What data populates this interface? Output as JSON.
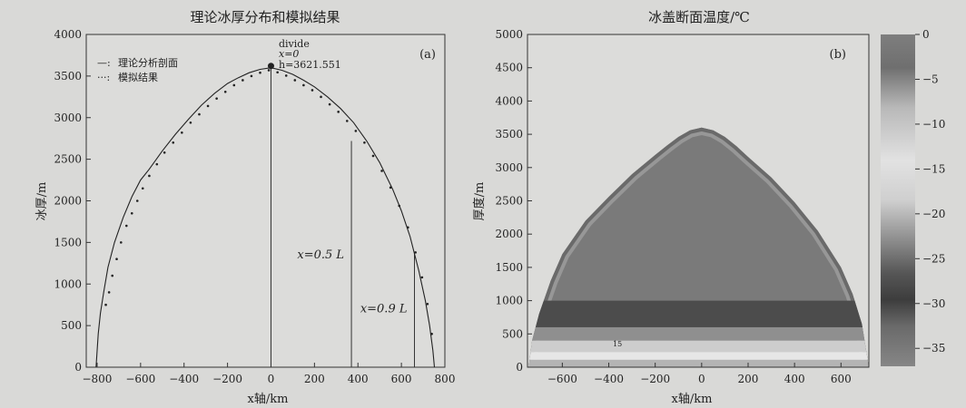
{
  "chart_data": [
    {
      "panel": "a",
      "type": "line",
      "title": "理论冰厚分布和模拟结果",
      "panel_label": "(a)",
      "xlabel": "x轴/km",
      "ylabel": "冰厚/m",
      "xlim": [
        -850,
        800
      ],
      "ylim": [
        0,
        4000
      ],
      "xticks": [
        -800,
        -600,
        -400,
        -200,
        0,
        200,
        400,
        600,
        800
      ],
      "xtick_labels": [
        "−800",
        "−600",
        "−400",
        "−200",
        "0",
        "200",
        "400",
        "600",
        "800"
      ],
      "yticks": [
        0,
        500,
        1000,
        1500,
        2000,
        2500,
        3000,
        3500,
        4000
      ],
      "ytick_labels": [
        "0",
        "500",
        "1000",
        "1500",
        "2000",
        "2500",
        "3000",
        "3500",
        "4000"
      ],
      "legend": {
        "placement": "top-left",
        "entries": [
          {
            "marker": "—:",
            "label": "理论分析剖面"
          },
          {
            "marker": "···:",
            "label": "模拟结果"
          }
        ]
      },
      "series": [
        {
          "style": "solid",
          "x": [
            -805,
            -800,
            -795,
            -785,
            -770,
            -750,
            -720,
            -680,
            -640,
            -600,
            -560,
            -500,
            -440,
            -380,
            -320,
            -260,
            -200,
            -150,
            -100,
            -50,
            0,
            50,
            100,
            150,
            200,
            260,
            320,
            380,
            440,
            500,
            560,
            600,
            640,
            680,
            710,
            730,
            745,
            752
          ],
          "y": [
            0,
            200,
            400,
            650,
            900,
            1200,
            1500,
            1800,
            2050,
            2250,
            2380,
            2600,
            2800,
            2980,
            3150,
            3290,
            3410,
            3480,
            3540,
            3580,
            3600,
            3570,
            3520,
            3450,
            3370,
            3250,
            3110,
            2940,
            2720,
            2460,
            2140,
            1880,
            1570,
            1160,
            800,
            500,
            200,
            0
          ]
        },
        {
          "style": "dotted",
          "x": [
            -760,
            -745,
            -730,
            -710,
            -690,
            -665,
            -640,
            -615,
            -590,
            -560,
            -525,
            -490,
            -450,
            -410,
            -370,
            -330,
            -290,
            -250,
            -210,
            -170,
            -130,
            -90,
            -50,
            -10,
            30,
            70,
            110,
            150,
            190,
            230,
            270,
            310,
            350,
            390,
            430,
            470,
            510,
            550,
            590,
            630,
            665,
            695,
            720,
            740
          ],
          "y": [
            750,
            900,
            1100,
            1300,
            1500,
            1700,
            1850,
            2000,
            2150,
            2300,
            2440,
            2580,
            2700,
            2820,
            2940,
            3040,
            3140,
            3230,
            3310,
            3390,
            3450,
            3500,
            3540,
            3570,
            3545,
            3505,
            3450,
            3390,
            3330,
            3250,
            3160,
            3070,
            2960,
            2840,
            2700,
            2540,
            2360,
            2160,
            1940,
            1680,
            1380,
            1080,
            760,
            400
          ]
        }
      ],
      "vlines": [
        {
          "x": 0,
          "y_top": 3600
        },
        {
          "x": 370,
          "y_top": 2720,
          "label": "x=0.5 L"
        },
        {
          "x": 660,
          "y_top": 1370,
          "label": "x=0.9 L"
        }
      ],
      "annotations": [
        {
          "text": "divide",
          "x": 0,
          "y": 3621.551
        },
        {
          "text": "x=0"
        },
        {
          "text": "h=3621.551"
        }
      ]
    },
    {
      "panel": "b",
      "type": "heatmap",
      "title": "冰盖断面温度/℃",
      "panel_label": "(b)",
      "xlabel": "x轴/km",
      "ylabel": "厚度/m",
      "xlim": [
        -750,
        720
      ],
      "ylim": [
        0,
        5000
      ],
      "xticks": [
        -600,
        -400,
        -200,
        0,
        200,
        400,
        600
      ],
      "xtick_labels": [
        "−600",
        "−400",
        "−200",
        "0",
        "200",
        "400",
        "600"
      ],
      "yticks": [
        0,
        500,
        1000,
        1500,
        2000,
        2500,
        3000,
        3500,
        4000,
        4500,
        5000
      ],
      "ytick_labels": [
        "0",
        "500",
        "1000",
        "1500",
        "2000",
        "2500",
        "3000",
        "3500",
        "4000",
        "4500",
        "5000"
      ],
      "surface": {
        "x": [
          -745,
          -730,
          -700,
          -650,
          -600,
          -500,
          -400,
          -300,
          -200,
          -150,
          -100,
          -50,
          0,
          50,
          100,
          150,
          200,
          300,
          400,
          500,
          600,
          650,
          690,
          720
        ],
        "y": [
          0,
          400,
          800,
          1300,
          1700,
          2200,
          2560,
          2900,
          3190,
          3330,
          3460,
          3560,
          3600,
          3560,
          3460,
          3320,
          3160,
          2850,
          2480,
          2050,
          1500,
          1100,
          650,
          0
        ]
      },
      "colorbar": {
        "ticks": [
          0,
          -5,
          -10,
          -15,
          -20,
          -25,
          -30,
          -35
        ],
        "tick_labels": [
          "0",
          "−5",
          "−10",
          "−15",
          "−20",
          "−25",
          "−30",
          "−35"
        ],
        "range": [
          -37,
          0
        ]
      },
      "contour_labels": [
        "15"
      ]
    }
  ]
}
